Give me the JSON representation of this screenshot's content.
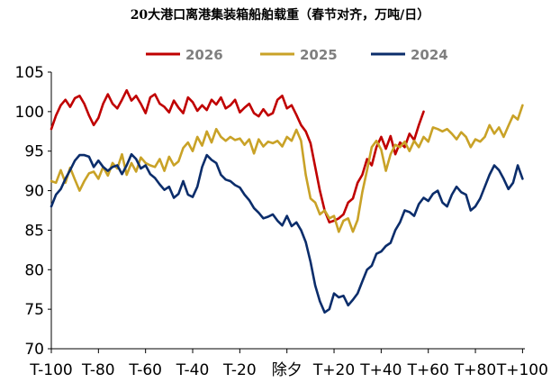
{
  "chart_data": {
    "type": "line",
    "title": "20大港口离港集装箱船舶载重（春节对齐，万吨/日）",
    "xlabel": "",
    "ylabel": "",
    "x_range": [
      -100,
      101
    ],
    "ylim": [
      70,
      105
    ],
    "y_ticks": [
      70,
      75,
      80,
      85,
      90,
      95,
      100,
      105
    ],
    "x_ticks": [
      {
        "x": -100,
        "label": "T-100"
      },
      {
        "x": -80,
        "label": "T-80"
      },
      {
        "x": -60,
        "label": "T-60"
      },
      {
        "x": -40,
        "label": "T-40"
      },
      {
        "x": -20,
        "label": "T-20"
      },
      {
        "x": 0,
        "label": "除夕"
      },
      {
        "x": 20,
        "label": "T+20"
      },
      {
        "x": 40,
        "label": "T+40"
      },
      {
        "x": 60,
        "label": "T+60"
      },
      {
        "x": 80,
        "label": "T+80"
      },
      {
        "x": 100,
        "label": "T+100"
      }
    ],
    "grid": false,
    "legend_position": "top",
    "series": [
      {
        "name": "2026",
        "color": "#c00000",
        "points": [
          [
            -100,
            97.8
          ],
          [
            -98,
            99.5
          ],
          [
            -96,
            100.8
          ],
          [
            -94,
            101.5
          ],
          [
            -92,
            100.6
          ],
          [
            -90,
            101.7
          ],
          [
            -88,
            102
          ],
          [
            -86,
            101
          ],
          [
            -84,
            99.5
          ],
          [
            -82,
            98.3
          ],
          [
            -80,
            99.2
          ],
          [
            -78,
            101
          ],
          [
            -76,
            102.2
          ],
          [
            -74,
            101
          ],
          [
            -72,
            100.4
          ],
          [
            -70,
            101.5
          ],
          [
            -68,
            102.7
          ],
          [
            -66,
            101.4
          ],
          [
            -64,
            102
          ],
          [
            -62,
            101
          ],
          [
            -60,
            99.8
          ],
          [
            -58,
            101.8
          ],
          [
            -56,
            102.2
          ],
          [
            -54,
            101
          ],
          [
            -52,
            100.6
          ],
          [
            -50,
            99.9
          ],
          [
            -48,
            101.4
          ],
          [
            -46,
            100.5
          ],
          [
            -44,
            99.8
          ],
          [
            -42,
            101.8
          ],
          [
            -40,
            101.2
          ],
          [
            -38,
            100.1
          ],
          [
            -36,
            100.8
          ],
          [
            -34,
            100.2
          ],
          [
            -32,
            101.5
          ],
          [
            -30,
            100.9
          ],
          [
            -28,
            101.8
          ],
          [
            -26,
            100.4
          ],
          [
            -24,
            100.8
          ],
          [
            -22,
            101.5
          ],
          [
            -20,
            99.9
          ],
          [
            -18,
            100.5
          ],
          [
            -16,
            101
          ],
          [
            -14,
            99.8
          ],
          [
            -12,
            99.4
          ],
          [
            -10,
            100.3
          ],
          [
            -8,
            99.5
          ],
          [
            -6,
            99.8
          ],
          [
            -4,
            101.5
          ],
          [
            -2,
            102
          ],
          [
            0,
            100.4
          ],
          [
            2,
            100.8
          ],
          [
            4,
            99.6
          ],
          [
            6,
            98.3
          ],
          [
            8,
            97.5
          ],
          [
            10,
            96
          ],
          [
            12,
            93
          ],
          [
            14,
            90
          ],
          [
            16,
            87.5
          ],
          [
            18,
            86
          ],
          [
            20,
            86.2
          ],
          [
            22,
            86.5
          ],
          [
            24,
            87
          ],
          [
            26,
            88.5
          ],
          [
            28,
            89
          ],
          [
            30,
            91
          ],
          [
            32,
            92
          ],
          [
            34,
            94
          ],
          [
            36,
            93.2
          ],
          [
            38,
            95.5
          ],
          [
            40,
            96.8
          ],
          [
            42,
            95.3
          ],
          [
            44,
            96.9
          ],
          [
            46,
            94.6
          ],
          [
            48,
            96.1
          ],
          [
            50,
            95.5
          ],
          [
            52,
            97.2
          ],
          [
            54,
            96.4
          ],
          [
            56,
            98.3
          ],
          [
            58,
            100
          ]
        ]
      },
      {
        "name": "2025",
        "color": "#c9a227",
        "points": [
          [
            -100,
            91.2
          ],
          [
            -98,
            91
          ],
          [
            -96,
            92.6
          ],
          [
            -94,
            91
          ],
          [
            -92,
            92.9
          ],
          [
            -90,
            91.4
          ],
          [
            -88,
            90
          ],
          [
            -86,
            91.2
          ],
          [
            -84,
            92.2
          ],
          [
            -82,
            92.4
          ],
          [
            -80,
            91.5
          ],
          [
            -78,
            93
          ],
          [
            -76,
            91.9
          ],
          [
            -74,
            93.5
          ],
          [
            -72,
            92.8
          ],
          [
            -70,
            94.6
          ],
          [
            -68,
            92
          ],
          [
            -66,
            93.5
          ],
          [
            -64,
            92.4
          ],
          [
            -62,
            94.2
          ],
          [
            -60,
            93.5
          ],
          [
            -58,
            93.2
          ],
          [
            -56,
            93
          ],
          [
            -54,
            94
          ],
          [
            -52,
            92.5
          ],
          [
            -50,
            94.3
          ],
          [
            -48,
            93.2
          ],
          [
            -46,
            93.7
          ],
          [
            -44,
            95.4
          ],
          [
            -42,
            96.1
          ],
          [
            -40,
            95
          ],
          [
            -38,
            96.8
          ],
          [
            -36,
            95.7
          ],
          [
            -34,
            97.5
          ],
          [
            -32,
            96.1
          ],
          [
            -30,
            97.8
          ],
          [
            -28,
            96.8
          ],
          [
            -26,
            96.3
          ],
          [
            -24,
            96.8
          ],
          [
            -22,
            96.4
          ],
          [
            -20,
            96.6
          ],
          [
            -18,
            95.8
          ],
          [
            -16,
            96.5
          ],
          [
            -14,
            94.7
          ],
          [
            -12,
            96.5
          ],
          [
            -10,
            95.6
          ],
          [
            -8,
            96.2
          ],
          [
            -6,
            96
          ],
          [
            -4,
            96.3
          ],
          [
            -2,
            95.6
          ],
          [
            0,
            96.8
          ],
          [
            2,
            96.3
          ],
          [
            4,
            97.7
          ],
          [
            6,
            96.3
          ],
          [
            8,
            92
          ],
          [
            10,
            89
          ],
          [
            12,
            88.5
          ],
          [
            14,
            87
          ],
          [
            16,
            87.5
          ],
          [
            18,
            86.5
          ],
          [
            20,
            86.8
          ],
          [
            22,
            84.8
          ],
          [
            24,
            86.2
          ],
          [
            26,
            86.5
          ],
          [
            28,
            84.8
          ],
          [
            30,
            86.3
          ],
          [
            32,
            89.8
          ],
          [
            34,
            92.6
          ],
          [
            36,
            95.5
          ],
          [
            38,
            96.3
          ],
          [
            40,
            95.2
          ],
          [
            42,
            92.5
          ],
          [
            44,
            94.6
          ],
          [
            46,
            95.8
          ],
          [
            48,
            95.5
          ],
          [
            50,
            96.2
          ],
          [
            52,
            95
          ],
          [
            54,
            96.3
          ],
          [
            56,
            95.5
          ],
          [
            58,
            96.8
          ],
          [
            60,
            96.2
          ],
          [
            62,
            98
          ],
          [
            64,
            97.8
          ],
          [
            66,
            97.5
          ],
          [
            68,
            97.8
          ],
          [
            70,
            97.2
          ],
          [
            72,
            96.5
          ],
          [
            74,
            97.4
          ],
          [
            76,
            96.8
          ],
          [
            78,
            95.5
          ],
          [
            80,
            96.5
          ],
          [
            82,
            96.2
          ],
          [
            84,
            96.8
          ],
          [
            86,
            98.3
          ],
          [
            88,
            97.2
          ],
          [
            90,
            98
          ],
          [
            92,
            96.8
          ],
          [
            94,
            98.2
          ],
          [
            96,
            99.5
          ],
          [
            98,
            99
          ],
          [
            100,
            100.8
          ]
        ]
      },
      {
        "name": "2024",
        "color": "#0b2d6b",
        "points": [
          [
            -100,
            88
          ],
          [
            -98,
            89.5
          ],
          [
            -96,
            90.2
          ],
          [
            -94,
            91.5
          ],
          [
            -92,
            92.6
          ],
          [
            -90,
            93.8
          ],
          [
            -88,
            94.5
          ],
          [
            -86,
            94.5
          ],
          [
            -84,
            94.3
          ],
          [
            -82,
            93
          ],
          [
            -80,
            93.8
          ],
          [
            -78,
            93
          ],
          [
            -76,
            92.5
          ],
          [
            -74,
            93
          ],
          [
            -72,
            93.2
          ],
          [
            -70,
            92.1
          ],
          [
            -68,
            93.2
          ],
          [
            -66,
            94.6
          ],
          [
            -64,
            94
          ],
          [
            -62,
            92.8
          ],
          [
            -60,
            93.2
          ],
          [
            -58,
            92.1
          ],
          [
            -56,
            91.6
          ],
          [
            -54,
            90.8
          ],
          [
            -52,
            90.1
          ],
          [
            -50,
            90.5
          ],
          [
            -48,
            89.1
          ],
          [
            -46,
            89.6
          ],
          [
            -44,
            91.2
          ],
          [
            -42,
            89.5
          ],
          [
            -40,
            89.2
          ],
          [
            -38,
            90.5
          ],
          [
            -36,
            93
          ],
          [
            -34,
            94.5
          ],
          [
            -32,
            93.9
          ],
          [
            -30,
            93.5
          ],
          [
            -28,
            92
          ],
          [
            -26,
            91.4
          ],
          [
            -24,
            91.2
          ],
          [
            -22,
            90.7
          ],
          [
            -20,
            90.4
          ],
          [
            -18,
            89.5
          ],
          [
            -16,
            88.8
          ],
          [
            -14,
            87.8
          ],
          [
            -12,
            87.2
          ],
          [
            -10,
            86.5
          ],
          [
            -8,
            86.7
          ],
          [
            -6,
            87
          ],
          [
            -4,
            86.2
          ],
          [
            -2,
            85.6
          ],
          [
            0,
            86.8
          ],
          [
            2,
            85.5
          ],
          [
            4,
            86
          ],
          [
            6,
            85
          ],
          [
            8,
            83.5
          ],
          [
            10,
            81
          ],
          [
            12,
            78
          ],
          [
            14,
            76
          ],
          [
            16,
            74.6
          ],
          [
            18,
            75
          ],
          [
            20,
            77
          ],
          [
            22,
            76.5
          ],
          [
            24,
            76.7
          ],
          [
            26,
            75.5
          ],
          [
            28,
            76.2
          ],
          [
            30,
            77
          ],
          [
            32,
            78.5
          ],
          [
            34,
            80
          ],
          [
            36,
            80.5
          ],
          [
            38,
            82
          ],
          [
            40,
            82.3
          ],
          [
            42,
            83
          ],
          [
            44,
            83.4
          ],
          [
            46,
            85
          ],
          [
            48,
            86
          ],
          [
            50,
            87.5
          ],
          [
            52,
            87.3
          ],
          [
            54,
            86.8
          ],
          [
            56,
            88.3
          ],
          [
            58,
            89.1
          ],
          [
            60,
            88.7
          ],
          [
            62,
            89.6
          ],
          [
            64,
            90
          ],
          [
            66,
            88.5
          ],
          [
            68,
            88
          ],
          [
            70,
            89.5
          ],
          [
            72,
            90.5
          ],
          [
            74,
            89.8
          ],
          [
            76,
            89.5
          ],
          [
            78,
            87.5
          ],
          [
            80,
            88
          ],
          [
            82,
            89
          ],
          [
            84,
            90.5
          ],
          [
            86,
            92
          ],
          [
            88,
            93.2
          ],
          [
            90,
            92.6
          ],
          [
            92,
            91.5
          ],
          [
            94,
            90.2
          ],
          [
            96,
            91
          ],
          [
            98,
            93.2
          ],
          [
            100,
            91.5
          ]
        ]
      }
    ]
  }
}
